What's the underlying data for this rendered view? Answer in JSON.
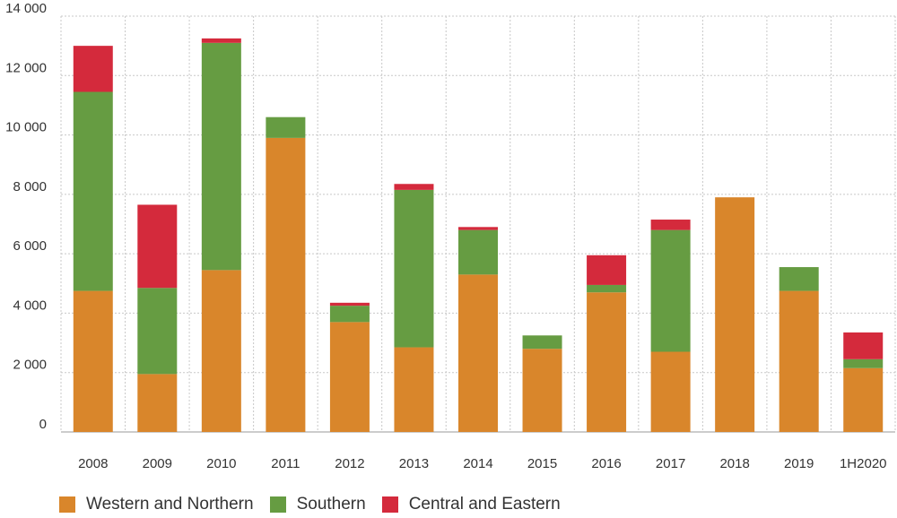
{
  "chart_data": {
    "type": "bar",
    "stacked": true,
    "categories": [
      "2008",
      "2009",
      "2010",
      "2011",
      "2012",
      "2013",
      "2014",
      "2015",
      "2016",
      "2017",
      "2018",
      "2019",
      "1H2020"
    ],
    "series": [
      {
        "name": "Western and Northern",
        "color": "#d9862b",
        "values": [
          4750,
          1950,
          5450,
          9900,
          3700,
          2850,
          5300,
          2800,
          4700,
          2700,
          7900,
          4750,
          2150
        ]
      },
      {
        "name": "Southern",
        "color": "#669c42",
        "values": [
          6700,
          2900,
          7650,
          700,
          550,
          5300,
          1500,
          450,
          250,
          4100,
          0,
          800,
          300
        ]
      },
      {
        "name": "Central and Eastern",
        "color": "#d42a3c",
        "values": [
          1550,
          2800,
          150,
          0,
          100,
          200,
          100,
          0,
          1000,
          350,
          0,
          0,
          900
        ]
      }
    ],
    "ylim": [
      0,
      14000
    ],
    "yticks": [
      0,
      2000,
      4000,
      6000,
      8000,
      10000,
      12000,
      14000
    ],
    "ytick_labels": [
      "0",
      "2 000",
      "4 000",
      "6 000",
      "8 000",
      "10 000",
      "12 000",
      "14 000"
    ],
    "grid": true,
    "legend_position": "bottom-left",
    "title": "",
    "xlabel": "",
    "ylabel": ""
  }
}
